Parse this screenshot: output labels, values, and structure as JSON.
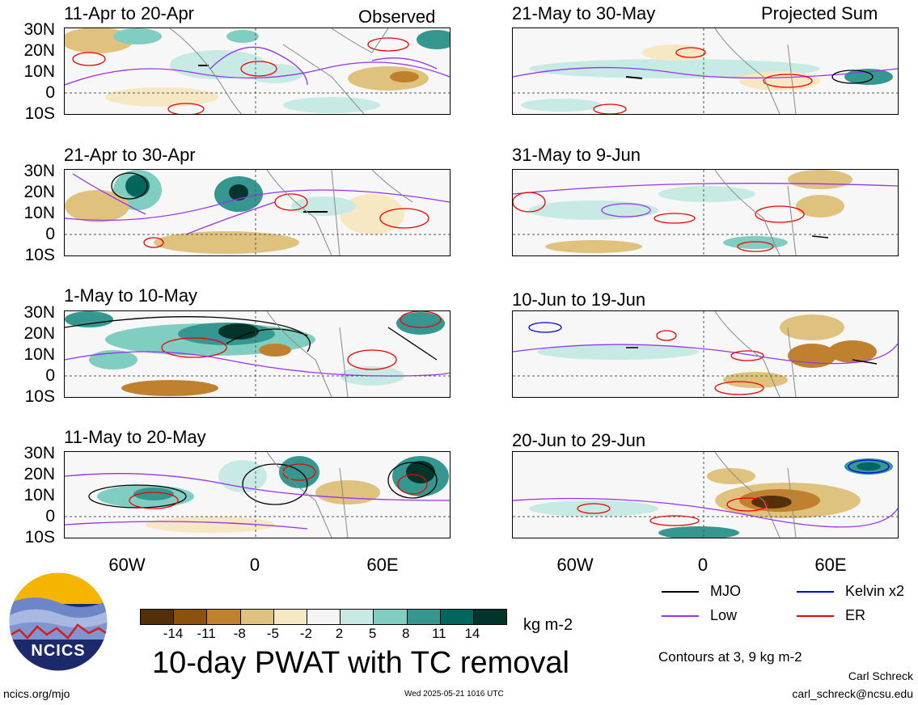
{
  "colors": {
    "dry_dark": "#54300a",
    "wet_dark": "#01352c",
    "mjo": "#000000",
    "low": "#9933ee",
    "kelvin": "#0000ee",
    "er": "#ee0000"
  },
  "header": {
    "observed_label": "Observed",
    "projected_label": "Projected Sum"
  },
  "lat_labels": [
    "30N",
    "20N",
    "10N",
    "0",
    "10S"
  ],
  "lon_labels": [
    "60W",
    "0",
    "60E"
  ],
  "panels_left": [
    {
      "title": "11-Apr to 20-Apr"
    },
    {
      "title": "21-Apr to 30-Apr"
    },
    {
      "title": "1-May to 10-May"
    },
    {
      "title": "11-May to 20-May"
    }
  ],
  "panels_right": [
    {
      "title": "21-May to 30-May"
    },
    {
      "title": "31-May to 9-Jun"
    },
    {
      "title": "10-Jun to 19-Jun"
    },
    {
      "title": "20-Jun to 29-Jun"
    }
  ],
  "colorbar": {
    "colors": [
      "#54300a",
      "#8c510a",
      "#bf812d",
      "#dfc27d",
      "#f6e8c3",
      "#f5f5f5",
      "#c7eae5",
      "#80cdc1",
      "#35978f",
      "#01665e",
      "#01352c"
    ],
    "labels": [
      "-14",
      "-11",
      "-8",
      "-5",
      "-2",
      "2",
      "5",
      "8",
      "11",
      "14"
    ],
    "unit": "kg m-2"
  },
  "legend": {
    "mjo": "MJO",
    "low": "Low",
    "kelvin": "Kelvin x2",
    "er": "ER",
    "contours_note": "Contours at 3, 9 kg m-2"
  },
  "footer": {
    "logo_text": "NCICS",
    "main_title": "10-day PWAT with TC removal",
    "site": "ncics.org/mjo",
    "timestamp": "Wed 2025-05-21 1016 UTC",
    "author": "Carl Schreck",
    "email": "carl_schreck@ncsu.edu"
  }
}
